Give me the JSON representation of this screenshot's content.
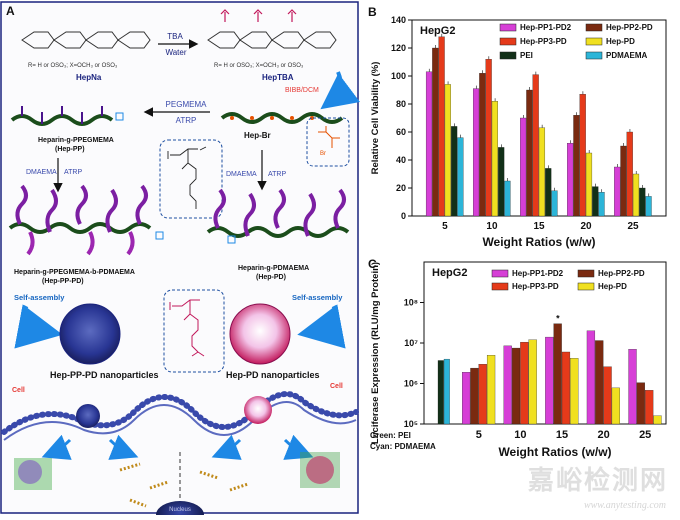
{
  "panel_a": {
    "letter": "A",
    "hepna_sub": "R= H or OSO₃; X=OCH₃ or OSO₃",
    "hepna": "HepNa",
    "tba": "TBA",
    "water": "Water",
    "heptba_sub": "R= H or OSO₃; X=OCH₃ or OSO₃",
    "heptba": "HepTBA",
    "bibb": "BIBB/DCM",
    "pegmema": "PEGMEMA",
    "atrp": "ATRP",
    "hep_pp_line1": "Heparin-g-PPEGMEMA",
    "hep_pp_line2": "(Hep-PP)",
    "hep_br": "Hep-Br",
    "dmaema": "DMAEMA",
    "hep_pp_pd_line1": "Heparin-g-PPEGMEMA-b-PDMAEMA",
    "hep_pp_pd_line2": "(Hep-PP-PD)",
    "hep_pd_line1": "Heparin-g-PDMAEMA",
    "hep_pd_line2": "(Hep-PD)",
    "self_assembly": "Self-assembly",
    "np_left": "Hep-PP-PD nanoparticles",
    "np_right": "Hep-PD nanoparticles",
    "cell": "Cell",
    "nucleus": "Nucleus",
    "colors": {
      "navy": "#1a237e",
      "purple": "#7b1fa2",
      "orange": "#e65100",
      "magenta": "#c2185b",
      "red": "#e53935",
      "blue": "#3949ab"
    }
  },
  "chart_data": [
    {
      "type": "bar",
      "panel": "B",
      "title": "HepG2",
      "xlabel": "Weight Ratios (w/w)",
      "ylabel": "Relative Cell Viability (%)",
      "ylim": [
        0,
        140
      ],
      "yticks": [
        0,
        20,
        40,
        60,
        80,
        100,
        120,
        140
      ],
      "categories": [
        "5",
        "10",
        "15",
        "20",
        "25"
      ],
      "legend_position": "top",
      "series": [
        {
          "name": "Hep-PP1-PD2",
          "color": "#d63fd6",
          "values": [
            103,
            91,
            70,
            52,
            35
          ]
        },
        {
          "name": "Hep-PP2-PD",
          "color": "#7a2a10",
          "values": [
            120,
            102,
            90,
            72,
            50
          ]
        },
        {
          "name": "Hep-PP3-PD",
          "color": "#e53a1a",
          "values": [
            128,
            112,
            101,
            87,
            60
          ]
        },
        {
          "name": "Hep-PD",
          "color": "#f0e020",
          "values": [
            94,
            82,
            63,
            45,
            30
          ]
        },
        {
          "name": "PEI",
          "color": "#123018",
          "values": [
            64,
            49,
            34,
            21,
            20
          ]
        },
        {
          "name": "PDMAEMA",
          "color": "#2cb5d8",
          "values": [
            56,
            25,
            18,
            17,
            14
          ]
        }
      ]
    },
    {
      "type": "bar",
      "panel": "C",
      "title": "HepG2",
      "xlabel": "Weight Ratios (w/w)",
      "ylabel": "Luciferase Expression (RLU/mg Protein)",
      "yscale": "log",
      "ylim": [
        100000,
        1000000000
      ],
      "yticks": [
        100000,
        1000000,
        10000000,
        100000000
      ],
      "ytick_labels": [
        "10⁵",
        "10⁶",
        "10⁷",
        "10⁸"
      ],
      "categories": [
        "5",
        "10",
        "15",
        "20",
        "25"
      ],
      "legend_position": "top",
      "series": [
        {
          "name": "Hep-PP1-PD2",
          "color": "#d63fd6",
          "values": [
            1900000,
            8500000,
            14000000,
            20000000,
            7000000
          ]
        },
        {
          "name": "Hep-PP2-PD",
          "color": "#7a2a10",
          "values": [
            2400000,
            7500000,
            30000000,
            11500000,
            1050000
          ]
        },
        {
          "name": "Hep-PP3-PD",
          "color": "#e53a1a",
          "values": [
            3000000,
            10500000,
            6000000,
            2600000,
            680000
          ]
        },
        {
          "name": "Hep-PD",
          "color": "#f0e020",
          "values": [
            5000000,
            12000000,
            4200000,
            780000,
            160000
          ]
        }
      ],
      "controls": [
        {
          "name": "PEI",
          "color": "#123018",
          "value": 3700000
        },
        {
          "name": "PDMAEMA",
          "color": "#2cb5d8",
          "value": 4000000
        }
      ],
      "annotation": "*",
      "controls_note_green": "Green: PEI",
      "controls_note_cyan": "Cyan: PDMAEMA"
    }
  ],
  "watermark": {
    "text": "嘉峪检测网",
    "url": "www.anytesting.com"
  }
}
